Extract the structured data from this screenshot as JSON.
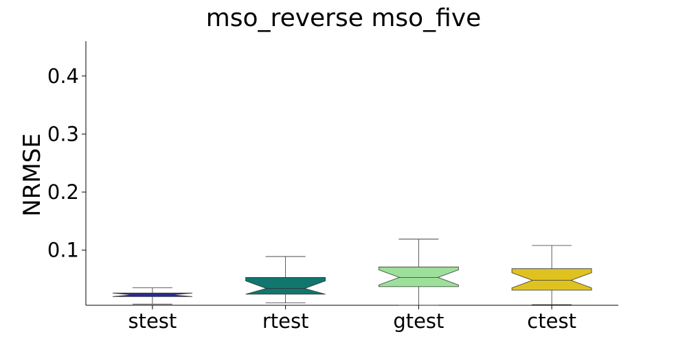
{
  "chart_data": {
    "type": "box",
    "title": "mso_reverse mso_five",
    "xlabel": "",
    "ylabel": "NRMSE",
    "ylim": [
      0.005,
      0.46
    ],
    "yticks": [
      0.1,
      0.2,
      0.3,
      0.4
    ],
    "ytick_labels": [
      "0.1",
      "0.2",
      "0.3",
      "0.4"
    ],
    "categories": [
      "stest",
      "rtest",
      "gtest",
      "ctest"
    ],
    "notched": true,
    "grid": false,
    "boxes": [
      {
        "category": "stest",
        "whislo": 0.007,
        "q1": 0.02,
        "median": 0.023,
        "q3": 0.026,
        "whishi": 0.035,
        "color": "#2424c4"
      },
      {
        "category": "rtest",
        "whislo": 0.009,
        "q1": 0.024,
        "median": 0.034,
        "q3": 0.053,
        "whishi": 0.089,
        "color": "#10766e"
      },
      {
        "category": "gtest",
        "whislo": 0.005,
        "q1": 0.037,
        "median": 0.053,
        "q3": 0.071,
        "whishi": 0.119,
        "color": "#9de09a"
      },
      {
        "category": "ctest",
        "whislo": 0.006,
        "q1": 0.031,
        "median": 0.048,
        "q3": 0.068,
        "whishi": 0.108,
        "color": "#dfc220"
      }
    ]
  }
}
